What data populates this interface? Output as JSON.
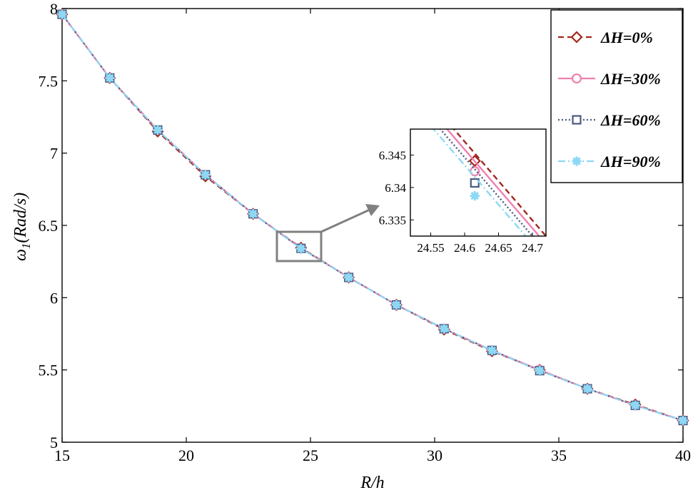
{
  "chart_data": [
    {
      "type": "line",
      "xlabel": "R/h",
      "ylabel_main": "ω",
      "ylabel_sub": "1",
      "ylabel_rest": "(Rad/s)",
      "xlim": [
        15,
        40
      ],
      "ylim": [
        5,
        8
      ],
      "x_ticks": [
        "15",
        "20",
        "25",
        "30",
        "35",
        "40"
      ],
      "y_ticks": [
        "5",
        "5.5",
        "6",
        "6.5",
        "7",
        "7.5",
        "8"
      ],
      "grid": false,
      "legend_position": "top-right",
      "x": [
        15,
        16.92,
        18.85,
        20.77,
        22.69,
        24.62,
        26.54,
        28.46,
        30.38,
        32.31,
        34.23,
        36.15,
        38.08,
        40
      ],
      "series": [
        {
          "name": "ΔH=0%",
          "color": "#A0281E",
          "dash": "8,5",
          "marker": "diamond",
          "values": [
            7.96,
            7.52,
            7.15,
            6.84,
            6.58,
            6.345,
            6.14,
            5.95,
            5.78,
            5.63,
            5.5,
            5.37,
            5.26,
            5.15
          ]
        },
        {
          "name": "ΔH=30%",
          "color": "#F080B0",
          "dash": "",
          "marker": "circle",
          "values": [
            7.96,
            7.52,
            7.16,
            6.85,
            6.58,
            6.342,
            6.14,
            5.95,
            5.785,
            5.635,
            5.5,
            5.37,
            5.255,
            5.15
          ]
        },
        {
          "name": "ΔH=60%",
          "color": "#4A5A80",
          "dash": "2,3",
          "marker": "square",
          "values": [
            7.96,
            7.52,
            7.16,
            6.85,
            6.58,
            6.341,
            6.14,
            5.95,
            5.785,
            5.635,
            5.495,
            5.37,
            5.255,
            5.15
          ]
        },
        {
          "name": "ΔH=90%",
          "color": "#8CD8F5",
          "dash": "10,4,2,4",
          "marker": "asterisk",
          "values": [
            7.96,
            7.52,
            7.16,
            6.85,
            6.58,
            6.339,
            6.14,
            5.95,
            5.785,
            5.635,
            5.495,
            5.37,
            5.255,
            5.15
          ]
        }
      ]
    },
    {
      "type": "line",
      "role": "zoom-inset",
      "xlim": [
        24.52,
        24.72
      ],
      "ylim": [
        6.3325,
        6.349
      ],
      "x_ticks": [
        "24.55",
        "24.6",
        "24.65",
        "24.7"
      ],
      "y_ticks": [
        "6.335",
        "6.34",
        "6.345"
      ],
      "marker_x": 24.615,
      "series": [
        {
          "name": "ΔH=0%",
          "color": "#A0281E",
          "dash": "8,5",
          "marker": "diamond",
          "line": [
            [
              24.58,
              6.3495
            ],
            [
              24.72,
              6.3325
            ]
          ],
          "marker_y": 6.3441
        },
        {
          "name": "ΔH=30%",
          "color": "#F080B0",
          "dash": "",
          "marker": "circle",
          "line": [
            [
              24.57,
              6.3495
            ],
            [
              24.71,
              6.3325
            ]
          ],
          "marker_y": 6.3425
        },
        {
          "name": "ΔH=60%",
          "color": "#4A5A80",
          "dash": "2,3",
          "marker": "square",
          "line": [
            [
              24.56,
              6.3495
            ],
            [
              24.7,
              6.3325
            ]
          ],
          "marker_y": 6.3407
        },
        {
          "name": "ΔH=90%",
          "color": "#8CD8F5",
          "dash": "10,4,2,4",
          "marker": "asterisk",
          "line": [
            [
              24.55,
              6.3495
            ],
            [
              24.69,
              6.3325
            ]
          ],
          "marker_y": 6.3387
        }
      ]
    }
  ]
}
